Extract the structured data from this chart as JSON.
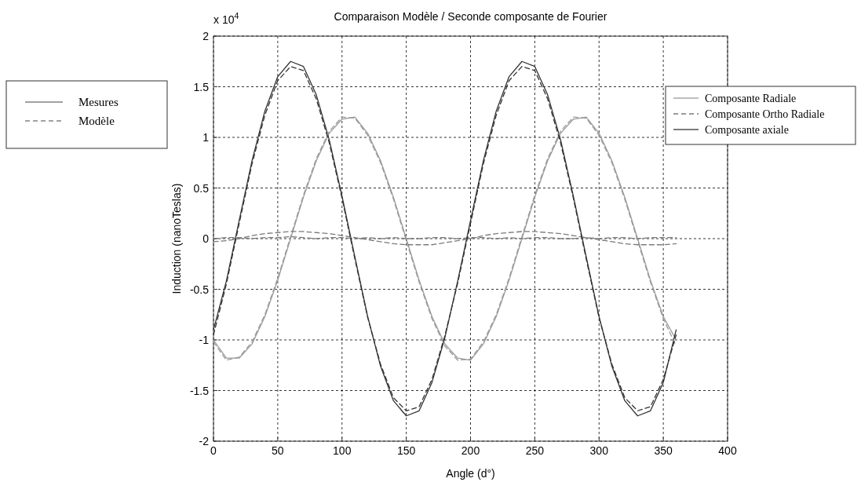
{
  "chart_data": {
    "type": "line",
    "title": "Comparaison Modèle / Seconde composante de Fourier",
    "xlabel": "Angle (d°)",
    "ylabel": "Induction (nanoTeslas)",
    "annotations": [
      "x 10$^{4}$",
      "Mesures",
      "Modèle"
    ],
    "x": [
      0,
      10,
      20,
      30,
      40,
      50,
      60,
      70,
      80,
      90,
      100,
      110,
      120,
      130,
      140,
      150,
      160,
      170,
      180,
      190,
      200,
      210,
      220,
      230,
      240,
      250,
      260,
      270,
      280,
      290,
      300,
      310,
      320,
      330,
      340,
      350,
      360
    ],
    "series": [
      {
        "name": "Composante Radiale",
        "color": "#9a9a9a",
        "line_style": "solid",
        "values": [
          -1.0,
          -1.18,
          -1.18,
          -1.04,
          -0.77,
          -0.41,
          0,
          0.41,
          0.77,
          1.04,
          1.18,
          1.2,
          1.04,
          0.77,
          0.41,
          0,
          -0.41,
          -0.77,
          -1.04,
          -1.18,
          -1.2,
          -1.04,
          -0.77,
          -0.41,
          0,
          0.41,
          0.77,
          1.04,
          1.18,
          1.2,
          1.04,
          0.77,
          0.41,
          0,
          -0.41,
          -0.77,
          -1.0
        ]
      },
      {
        "name": "Composante Ortho Radiale",
        "color": "#7a7a7a",
        "line_style": "dashed",
        "values": [
          0.0,
          0.01,
          0.01,
          0.0,
          0.01,
          0.01,
          0.02,
          0.01,
          0.0,
          0.01,
          0.01,
          0.0,
          0.01,
          0.0,
          0.01,
          0.0,
          0.0,
          0.01,
          0.01,
          0.0,
          0.01,
          0.01,
          0.0,
          0.01,
          0.0,
          0.01,
          0.01,
          0.0,
          0.0,
          0.01,
          0.0,
          0.01,
          0.01,
          0.0,
          0.01,
          0.01,
          0.01
        ]
      },
      {
        "name": "Composante axiale",
        "color": "#333333",
        "line_style": "solid",
        "values": [
          -0.9,
          -0.42,
          0.18,
          0.77,
          1.26,
          1.6,
          1.75,
          1.7,
          1.42,
          0.98,
          0.42,
          -0.18,
          -0.77,
          -1.26,
          -1.6,
          -1.75,
          -1.7,
          -1.42,
          -0.98,
          -0.42,
          0.18,
          0.77,
          1.26,
          1.6,
          1.75,
          1.7,
          1.42,
          0.98,
          0.42,
          -0.18,
          -0.77,
          -1.26,
          -1.6,
          -1.75,
          -1.7,
          -1.42,
          -0.9
        ]
      },
      {
        "color": "#9a9a9a",
        "line_style": "dashed",
        "values": [
          -1.02,
          -1.2,
          -1.17,
          -1.02,
          -0.75,
          -0.39,
          0.02,
          0.43,
          0.79,
          1.06,
          1.2,
          1.19,
          1.02,
          0.75,
          0.39,
          -0.02,
          -0.43,
          -0.79,
          -1.06,
          -1.2,
          -1.19,
          -1.02,
          -0.75,
          -0.39,
          0.02,
          0.43,
          0.79,
          1.06,
          1.2,
          1.19,
          1.02,
          0.75,
          0.39,
          -0.02,
          -0.43,
          -0.79,
          -1.06
        ]
      },
      {
        "color": "#7a7a7a",
        "line_style": "dashed",
        "values": [
          -0.03,
          -0.02,
          0.0,
          0.03,
          0.05,
          0.06,
          0.07,
          0.07,
          0.06,
          0.05,
          0.03,
          0.01,
          -0.01,
          -0.03,
          -0.05,
          -0.06,
          -0.06,
          -0.06,
          -0.04,
          -0.02,
          0.0,
          0.03,
          0.05,
          0.06,
          0.07,
          0.07,
          0.06,
          0.05,
          0.03,
          0.01,
          -0.01,
          -0.03,
          -0.05,
          -0.06,
          -0.06,
          -0.06,
          -0.05
        ]
      },
      {
        "color": "#333333",
        "line_style": "dashed",
        "values": [
          -0.95,
          -0.45,
          0.15,
          0.74,
          1.22,
          1.56,
          1.7,
          1.66,
          1.38,
          0.95,
          0.4,
          -0.2,
          -0.78,
          -1.24,
          -1.57,
          -1.7,
          -1.66,
          -1.39,
          -0.96,
          -0.44,
          0.15,
          0.74,
          1.22,
          1.56,
          1.7,
          1.66,
          1.38,
          0.95,
          0.4,
          -0.2,
          -0.78,
          -1.24,
          -1.57,
          -1.7,
          -1.66,
          -1.39,
          -0.95
        ]
      }
    ],
    "xlim": [
      0,
      400
    ],
    "xticks": [
      0,
      50,
      100,
      150,
      200,
      250,
      300,
      350,
      400
    ],
    "ylim": [
      -2,
      2
    ],
    "yticks": [
      -2,
      -1.5,
      -1,
      -0.5,
      0,
      0.5,
      1,
      1.5,
      2
    ],
    "grid": true,
    "legend": "top right"
  }
}
